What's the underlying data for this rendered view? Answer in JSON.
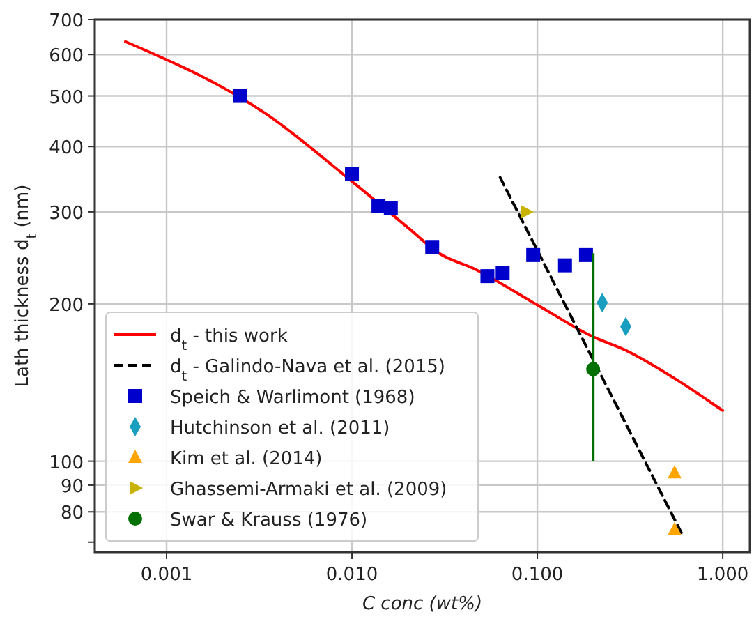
{
  "chart_data": {
    "type": "scatter",
    "xlabel": "C conc (wt%)",
    "ylabel": "Lath thickness d$_{t}$ (nm)",
    "log": "xy",
    "grid": true,
    "legend": "bottom left",
    "xlim": [
      0.00041,
      1.4
    ],
    "xticks": [
      {
        "value": 0.001,
        "label": "0.001"
      },
      {
        "value": 0.01,
        "label": "0.010"
      },
      {
        "value": 0.1,
        "label": "0.100"
      },
      {
        "value": 1,
        "label": "1.000"
      }
    ],
    "ylim": [
      67,
      700
    ],
    "yticks": [
      {
        "value": 70,
        "label": null
      },
      80,
      90,
      100,
      200,
      300,
      400,
      500,
      600,
      700
    ],
    "series": [
      {
        "name": "d$_{t}$ - this work",
        "type": "line",
        "color": "#ff0000",
        "line_style": "solid",
        "marker": "none",
        "x": [
          0.0006,
          0.0035,
          0.01,
          0.02,
          0.03,
          0.045,
          0.1,
          0.2,
          0.3,
          0.55,
          1.0
        ],
        "values": [
          635,
          460,
          343,
          280,
          249,
          234,
          199,
          173,
          163,
          144,
          125
        ]
      },
      {
        "name": "d$_{t}$ - Galindo-Nava et al. (2015)",
        "type": "line",
        "color": "#000000",
        "line_style": "dashed",
        "marker": "none",
        "x": [
          0.063,
          0.61
        ],
        "values": [
          349,
          72
        ]
      },
      {
        "name": "Speich & Warlimont (1968)",
        "type": "scatter",
        "color": "#0000cc",
        "marker": "square",
        "x": [
          0.0025,
          0.01,
          0.0139,
          0.0162,
          0.0271,
          0.0538,
          0.065,
          0.095,
          0.141,
          0.183
        ],
        "values": [
          500,
          355,
          308,
          305,
          257,
          226,
          229,
          248,
          237,
          248
        ]
      },
      {
        "name": "Hutchinson et al. (2011)",
        "type": "scatter",
        "color": "#1a9ec0",
        "marker": "diamond",
        "x": [
          0.224,
          0.3
        ],
        "values": [
          201,
          181
        ]
      },
      {
        "name": "Kim et al. (2014)",
        "type": "scatter",
        "color": "#ffa500",
        "marker": "triangle",
        "x": [
          0.55,
          0.55
        ],
        "values": [
          95,
          74
        ]
      },
      {
        "name": "Ghassemi-Armaki et al. (2009)",
        "type": "scatter",
        "color": "#c8b400",
        "marker": "triangle-right",
        "x": [
          0.087
        ],
        "values": [
          300
        ]
      },
      {
        "name": "Swar & Krauss (1976)",
        "type": "scatter",
        "color": "#007000",
        "marker": "circle",
        "x": [
          0.2
        ],
        "values": [
          150
        ],
        "errors": [
          [
            100,
            250
          ]
        ]
      }
    ]
  }
}
